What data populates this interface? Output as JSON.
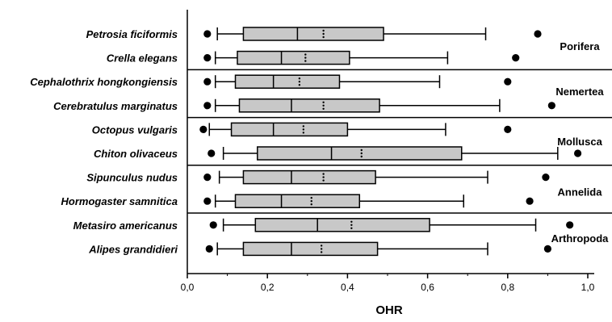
{
  "chart_data": {
    "type": "boxplot",
    "orientation": "horizontal",
    "xlabel": "OHR",
    "xlim": [
      0,
      1.05
    ],
    "xticks": [
      "0,0",
      "0,2",
      "0,4",
      "0,6",
      "0,8",
      "1,0"
    ],
    "xtick_values": [
      0,
      0.2,
      0.4,
      0.6,
      0.8,
      1.0
    ],
    "box_color": "#c8c8c8",
    "grid": false,
    "series": [
      {
        "name": "Petrosia ficiformis",
        "group": "Porifera",
        "outlier_low": 0.05,
        "whisker_low": 0.075,
        "q1": 0.14,
        "median": 0.275,
        "mean": 0.34,
        "q3": 0.49,
        "whisker_high": 0.745,
        "outlier_high": 0.875
      },
      {
        "name": "Crella elegans",
        "group": "Porifera",
        "outlier_low": 0.05,
        "whisker_low": 0.07,
        "q1": 0.125,
        "median": 0.235,
        "mean": 0.295,
        "q3": 0.405,
        "whisker_high": 0.65,
        "outlier_high": 0.82
      },
      {
        "name": "Cephalothrix hongkongiensis",
        "group": "Nemertea",
        "outlier_low": 0.05,
        "whisker_low": 0.07,
        "q1": 0.12,
        "median": 0.215,
        "mean": 0.28,
        "q3": 0.38,
        "whisker_high": 0.63,
        "outlier_high": 0.8
      },
      {
        "name": "Cerebratulus marginatus",
        "group": "Nemertea",
        "outlier_low": 0.05,
        "whisker_low": 0.07,
        "q1": 0.13,
        "median": 0.26,
        "mean": 0.34,
        "q3": 0.48,
        "whisker_high": 0.78,
        "outlier_high": 0.91
      },
      {
        "name": "Octopus vulgaris",
        "group": "Mollusca",
        "outlier_low": 0.04,
        "whisker_low": 0.055,
        "q1": 0.11,
        "median": 0.215,
        "mean": 0.29,
        "q3": 0.4,
        "whisker_high": 0.645,
        "outlier_high": 0.8
      },
      {
        "name": "Chiton olivaceus",
        "group": "Mollusca",
        "outlier_low": 0.06,
        "whisker_low": 0.09,
        "q1": 0.175,
        "median": 0.36,
        "mean": 0.435,
        "q3": 0.685,
        "whisker_high": 0.925,
        "outlier_high": 0.975
      },
      {
        "name": "Sipunculus nudus",
        "group": "Annelida",
        "outlier_low": 0.05,
        "whisker_low": 0.08,
        "q1": 0.14,
        "median": 0.26,
        "mean": 0.34,
        "q3": 0.47,
        "whisker_high": 0.75,
        "outlier_high": 0.895
      },
      {
        "name": "Hormogaster samnitica",
        "group": "Annelida",
        "outlier_low": 0.05,
        "whisker_low": 0.07,
        "q1": 0.12,
        "median": 0.235,
        "mean": 0.31,
        "q3": 0.43,
        "whisker_high": 0.69,
        "outlier_high": 0.855
      },
      {
        "name": "Metasiro americanus",
        "group": "Arthropoda",
        "outlier_low": 0.065,
        "whisker_low": 0.09,
        "q1": 0.17,
        "median": 0.325,
        "mean": 0.41,
        "q3": 0.605,
        "whisker_high": 0.87,
        "outlier_high": 0.955
      },
      {
        "name": "Alipes grandidieri",
        "group": "Arthropoda",
        "outlier_low": 0.055,
        "whisker_low": 0.075,
        "q1": 0.14,
        "median": 0.26,
        "mean": 0.335,
        "q3": 0.475,
        "whisker_high": 0.75,
        "outlier_high": 0.9
      }
    ],
    "groups": [
      {
        "name": "Porifera",
        "label_row": 0.5
      },
      {
        "name": "Nemertea",
        "label_row": 2.4
      },
      {
        "name": "Mollusca",
        "label_row": 4.5
      },
      {
        "name": "Annelida",
        "label_row": 6.6
      },
      {
        "name": "Arthropoda",
        "label_row": 8.55
      }
    ],
    "separators_after_rows": [
      1,
      3,
      5,
      7
    ]
  }
}
